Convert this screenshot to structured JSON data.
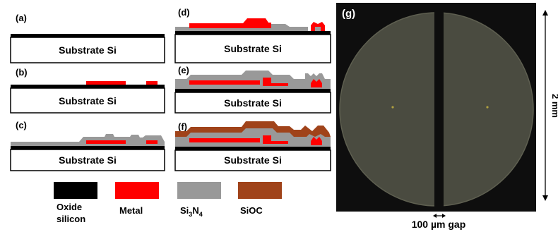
{
  "panels": [
    {
      "tag": "(a)",
      "substrate": "Substrate Si"
    },
    {
      "tag": "(b)",
      "substrate": "Substrate Si"
    },
    {
      "tag": "(c)",
      "substrate": "Substrate Si"
    },
    {
      "tag": "(d)",
      "substrate": "Substrate Si"
    },
    {
      "tag": "(e)",
      "substrate": "Substrate Si"
    },
    {
      "tag": "(f)",
      "substrate": "Substrate Si"
    }
  ],
  "legend": [
    {
      "label_lines": [
        "Oxide",
        "silicon"
      ],
      "color": "#000000"
    },
    {
      "label_lines": [
        "Metal"
      ],
      "color": "#ff0000"
    },
    {
      "label_parts": [
        "Si",
        "3",
        "N",
        "4"
      ],
      "color": "#999999"
    },
    {
      "label_lines": [
        "SiOC"
      ],
      "color": "#a0431a"
    }
  ],
  "photo": {
    "tag": "(g)",
    "scale_label": "2 mm",
    "gap_label": "100 µm gap"
  },
  "colors": {
    "oxide": "#000000",
    "metal": "#ff0000",
    "nitride": "#999999",
    "sioc": "#a0431a",
    "photo_bg": "#0e0e0e",
    "photo_disk": "#4a4b40"
  }
}
